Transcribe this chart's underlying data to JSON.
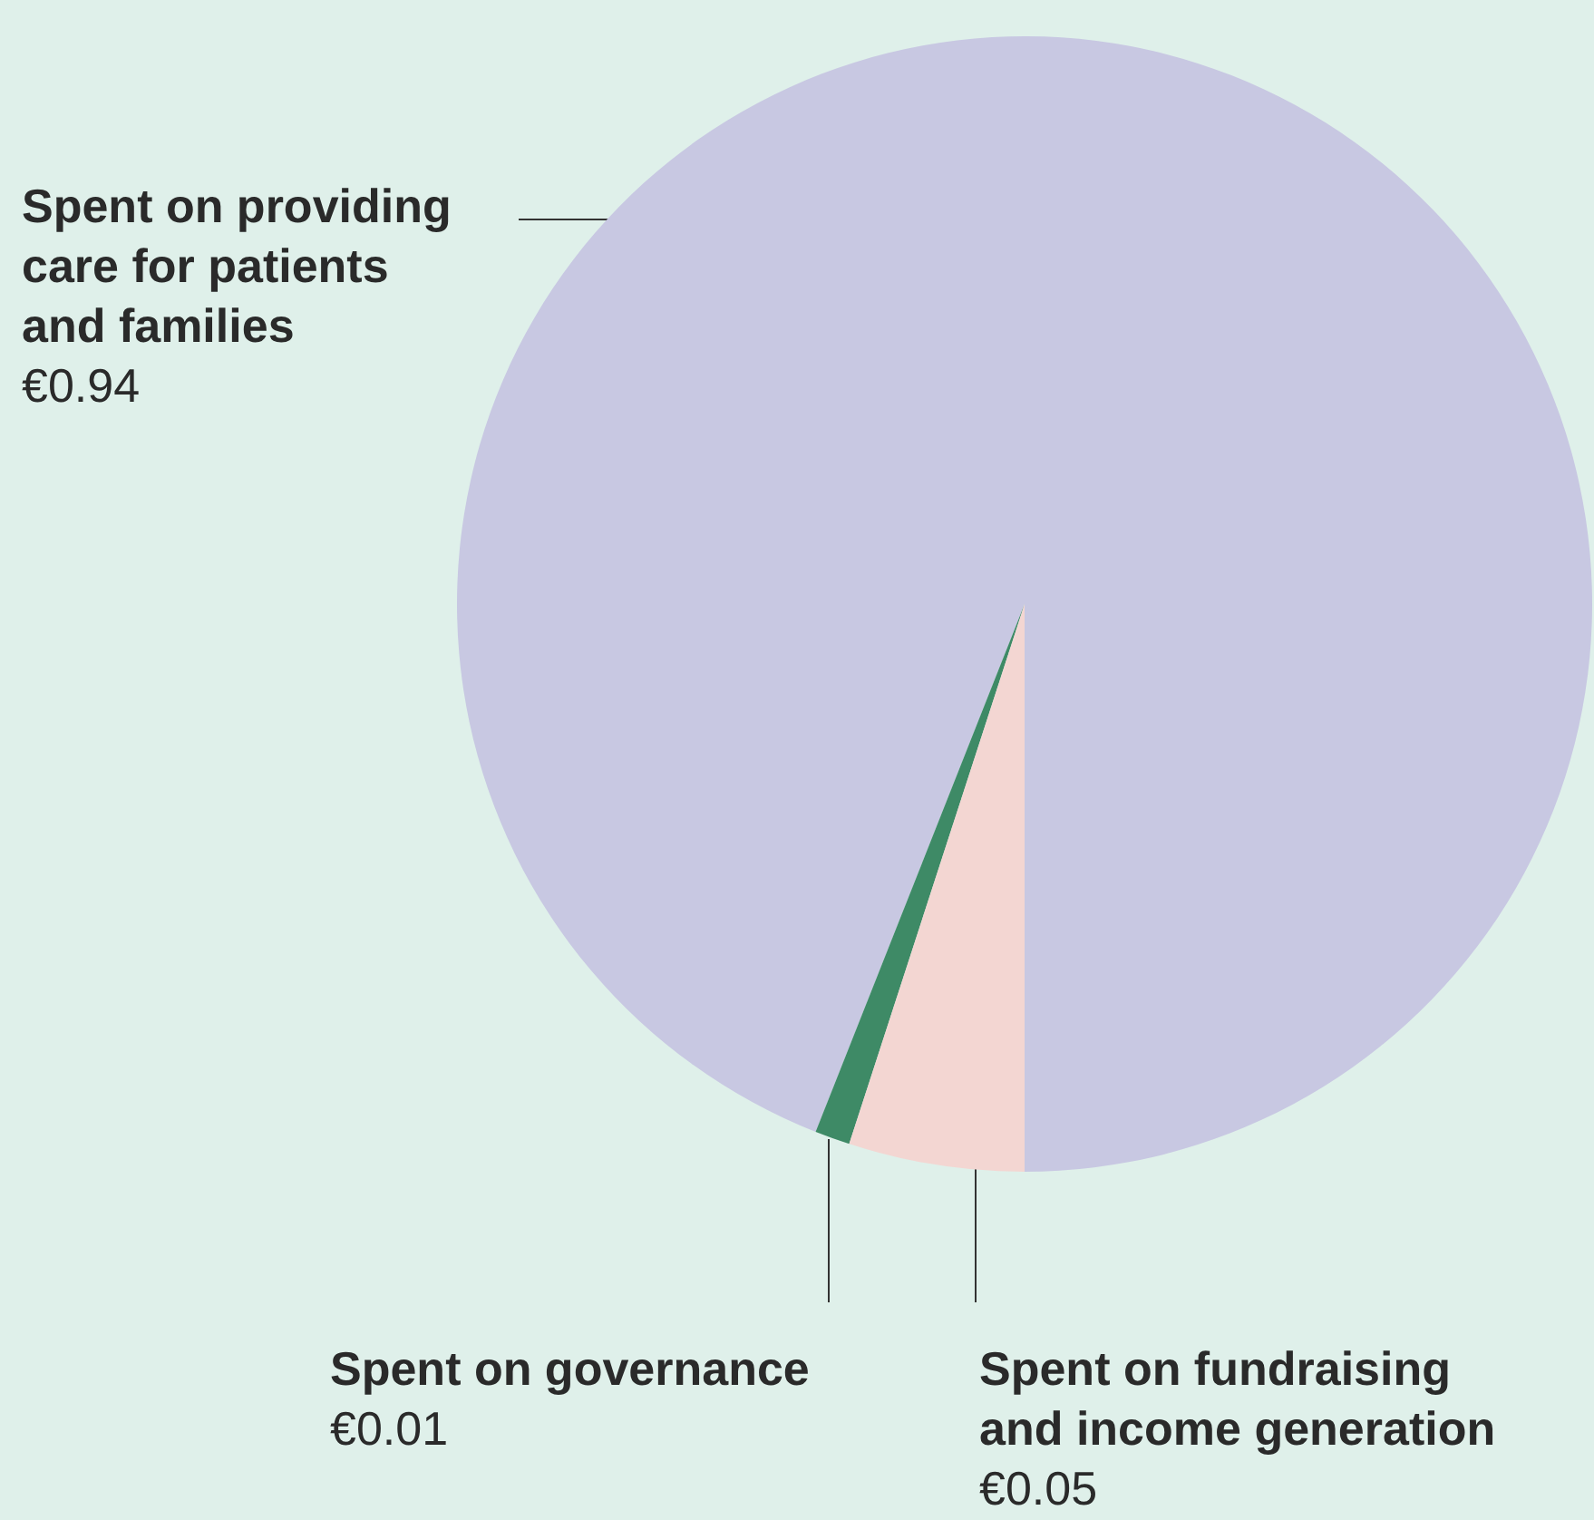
{
  "chart_data": {
    "type": "pie",
    "categories": [
      "Spent on providing care for patients and families",
      "Spent on governance",
      "Spent on fundraising and income generation"
    ],
    "values": [
      0.94,
      0.01,
      0.05
    ],
    "colors": [
      "#c8c8e2",
      "#3e8a66",
      "#f3d6d2"
    ],
    "value_labels": [
      "€0.94",
      "€0.01",
      "€0.05"
    ]
  }
}
